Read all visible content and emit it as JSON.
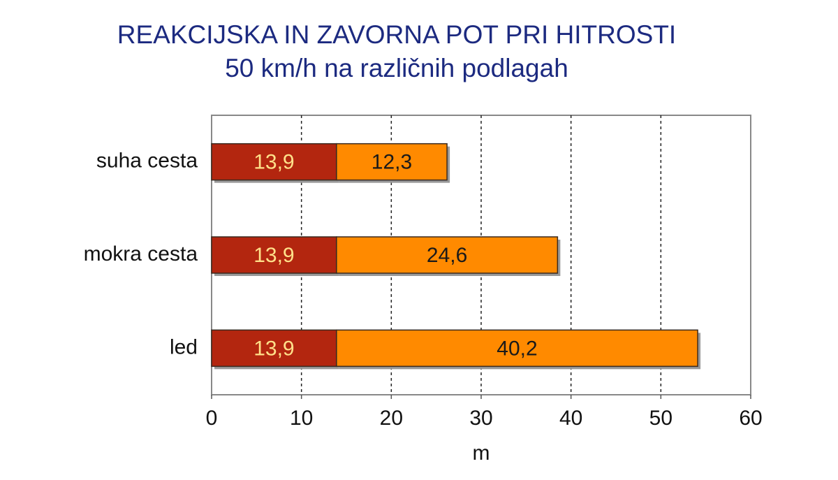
{
  "chart_data": {
    "type": "stacked-bar-horizontal",
    "title": "REAKCIJSKA IN ZAVORNA POT PRI HITROSTI",
    "subtitle": "50 km/h  na različnih podlagah",
    "categories": [
      "suha cesta",
      "mokra cesta",
      "led"
    ],
    "series": [
      {
        "color": "#b3260f",
        "label_color": "#ffe08a",
        "values": [
          13.9,
          13.9,
          13.9
        ],
        "value_labels": [
          "13,9",
          "13,9",
          "13,9"
        ]
      },
      {
        "color": "#ff8a00",
        "label_color": "#1a1a1a",
        "values": [
          12.3,
          24.6,
          40.2
        ],
        "value_labels": [
          "12,3",
          "24,6",
          "40,2"
        ]
      }
    ],
    "x_label": "m",
    "xlim": [
      0,
      60
    ],
    "xticks": [
      0,
      10,
      20,
      30,
      40,
      50,
      60
    ],
    "grid": true
  }
}
